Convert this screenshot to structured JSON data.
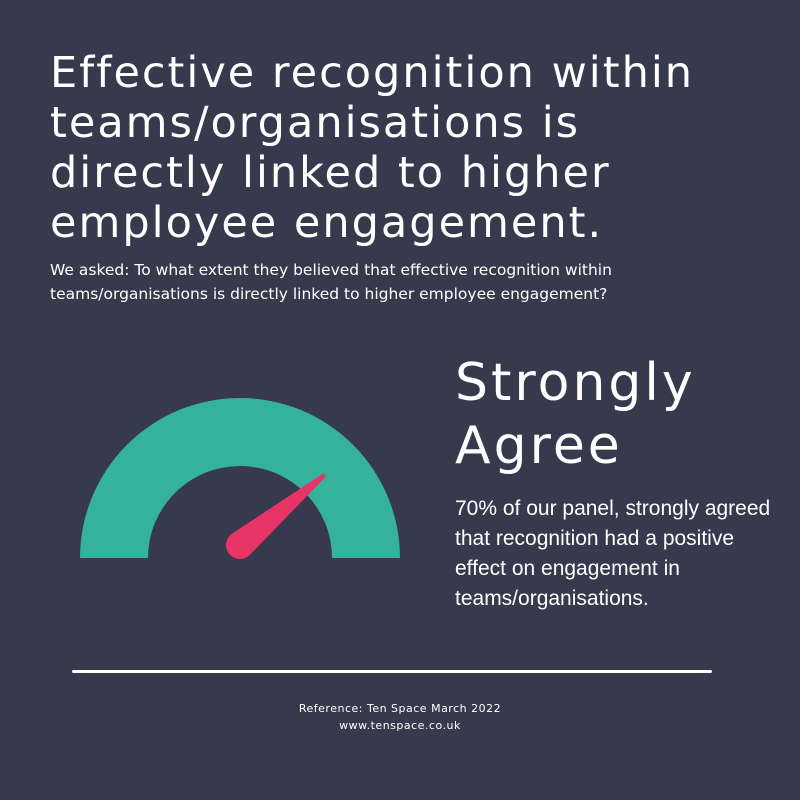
{
  "headline": "Effective recognition within teams/organisations is directly linked to higher employee engagement.",
  "question": "We asked: To what extent they believed that effective recognition within teams/organisations is directly linked to higher employee engagement?",
  "gauge": {
    "icon": "speedometer-gauge-icon",
    "arc_color": "#34b39a",
    "needle_color": "#e83366",
    "needle_level": 0.78
  },
  "result": {
    "title": "Strongly Agree",
    "description": "70% of our panel, strongly agreed that recognition had a positive effect on engagement in teams/organisations."
  },
  "footer": {
    "reference": "Reference: Ten Space March 2022",
    "website": "www.tenspace.co.uk"
  },
  "colors": {
    "background": "#363a4c",
    "text": "#ffffff"
  }
}
